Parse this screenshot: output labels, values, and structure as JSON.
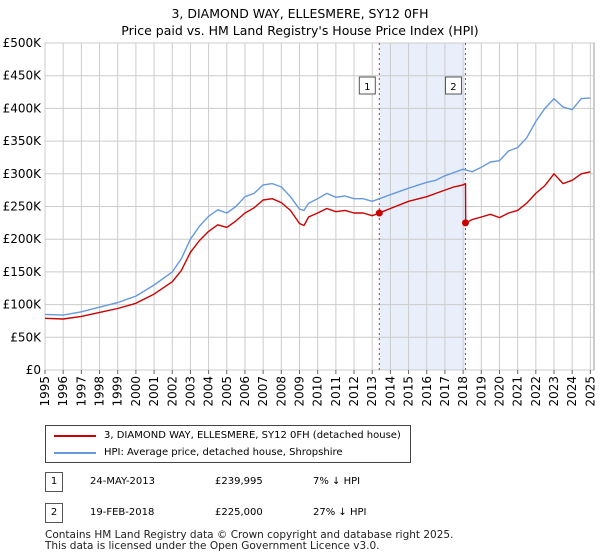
{
  "title_line1": "3, DIAMOND WAY, ELLESMERE, SY12 0FH",
  "title_line2": "Price paid vs. HM Land Registry's House Price Index (HPI)",
  "colors": {
    "price": "#cc0000",
    "hpi": "#6699dd",
    "shade": "#e8eefa",
    "marker_line": "#cc0000",
    "grid": "#cccccc"
  },
  "chart_data": {
    "type": "line",
    "title": "3, DIAMOND WAY, ELLESMERE, SY12 0FH — Price paid vs. HM Land Registry's House Price Index (HPI)",
    "xlim": [
      1995,
      2025.2
    ],
    "ylim": [
      0,
      500000
    ],
    "x_ticks": [
      "1995",
      "1996",
      "1997",
      "1998",
      "1999",
      "2000",
      "2001",
      "2002",
      "2003",
      "2004",
      "2005",
      "2006",
      "2007",
      "2008",
      "2009",
      "2010",
      "2011",
      "2012",
      "2013",
      "2014",
      "2015",
      "2016",
      "2017",
      "2018",
      "2019",
      "2020",
      "2021",
      "2022",
      "2023",
      "2024",
      "2025"
    ],
    "y_ticks": [
      "£0",
      "£50K",
      "£100K",
      "£150K",
      "£200K",
      "£250K",
      "£300K",
      "£350K",
      "£400K",
      "£450K",
      "£500K"
    ],
    "series": [
      {
        "name": "HPI: Average price, detached house, Shropshire",
        "x": [
          1995,
          1996,
          1997,
          1998,
          1999,
          2000,
          2001,
          2002,
          2002.5,
          2003,
          2003.5,
          2004,
          2004.5,
          2005,
          2005.5,
          2006,
          2006.5,
          2007,
          2007.5,
          2008,
          2008.5,
          2009,
          2009.25,
          2009.5,
          2010,
          2010.5,
          2011,
          2011.5,
          2012,
          2012.5,
          2013,
          2013.4,
          2014,
          2015,
          2016,
          2016.5,
          2017,
          2017.5,
          2018,
          2018.5,
          2019,
          2019.5,
          2020,
          2020.5,
          2021,
          2021.5,
          2022,
          2022.5,
          2023,
          2023.5,
          2024,
          2024.5,
          2025
        ],
        "values": [
          85000,
          84000,
          89000,
          96000,
          103000,
          113000,
          130000,
          150000,
          170000,
          200000,
          220000,
          235000,
          245000,
          240000,
          250000,
          265000,
          270000,
          283000,
          285000,
          280000,
          265000,
          246000,
          244000,
          255000,
          262000,
          270000,
          264000,
          266000,
          262000,
          262000,
          258000,
          262000,
          268000,
          278000,
          287000,
          290000,
          297000,
          302000,
          307000,
          303000,
          310000,
          318000,
          320000,
          335000,
          340000,
          355000,
          380000,
          400000,
          415000,
          402000,
          398000,
          415000,
          416000
        ]
      },
      {
        "name": "3, DIAMOND WAY, ELLESMERE, SY12 0FH (detached house)",
        "x": [
          1995,
          1996,
          1997,
          1998,
          1999,
          2000,
          2001,
          2002,
          2002.5,
          2003,
          2003.5,
          2004,
          2004.5,
          2005,
          2005.5,
          2006,
          2006.5,
          2007,
          2007.5,
          2008,
          2008.5,
          2009,
          2009.25,
          2009.5,
          2010,
          2010.5,
          2011,
          2011.5,
          2012,
          2012.5,
          2013,
          2013.39,
          2014,
          2015,
          2016,
          2016.5,
          2017,
          2017.5,
          2018,
          2018.13,
          2018.14,
          2018.5,
          2019,
          2019.5,
          2020,
          2020.5,
          2021,
          2021.5,
          2022,
          2022.5,
          2023,
          2023.5,
          2024,
          2024.5,
          2025
        ],
        "values": [
          79000,
          78000,
          82000,
          88000,
          94000,
          102000,
          116000,
          135000,
          152000,
          180000,
          198000,
          212000,
          222000,
          218000,
          228000,
          240000,
          248000,
          260000,
          262000,
          256000,
          244000,
          224000,
          221000,
          234000,
          240000,
          247000,
          242000,
          244000,
          240000,
          240000,
          236000,
          239995,
          247000,
          258000,
          265000,
          270000,
          275000,
          280000,
          283000,
          285000,
          225000,
          230000,
          234000,
          238000,
          233000,
          240000,
          244000,
          255000,
          270000,
          282000,
          300000,
          285000,
          290000,
          300000,
          303000
        ]
      }
    ],
    "sales": [
      {
        "label": "1",
        "x": 2013.39,
        "value": 239995
      },
      {
        "label": "2",
        "x": 2018.13,
        "value": 225000
      }
    ]
  },
  "legend": {
    "price_label": "3, DIAMOND WAY, ELLESMERE, SY12 0FH (detached house)",
    "hpi_label": "HPI: Average price, detached house, Shropshire"
  },
  "sales_table": [
    {
      "num": "1",
      "date": "24-MAY-2013",
      "price": "£239,995",
      "hpi": "7% ↓ HPI"
    },
    {
      "num": "2",
      "date": "19-FEB-2018",
      "price": "£225,000",
      "hpi": "27% ↓ HPI"
    }
  ],
  "footer_line1": "Contains HM Land Registry data © Crown copyright and database right 2025.",
  "footer_line2": "This data is licensed under the Open Government Licence v3.0."
}
